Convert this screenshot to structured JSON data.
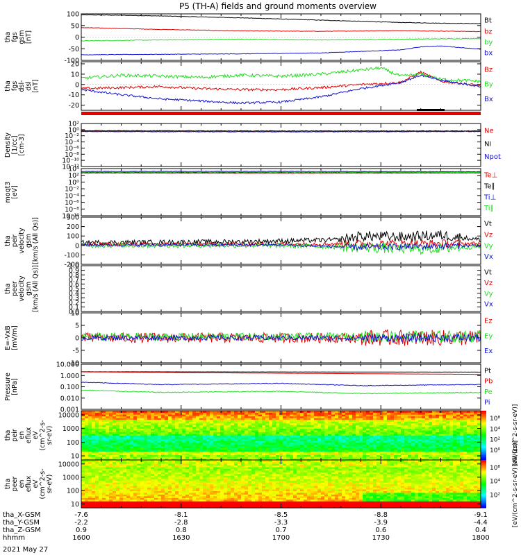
{
  "title": "P5 (TH-A) fields and ground moments overview",
  "colors": {
    "black": "#000000",
    "red": "#e00000",
    "green": "#22dd22",
    "blue": "#1010d0"
  },
  "chart_data": [
    {
      "type": "line",
      "name": "fgs-gsm",
      "ylabel_lines": [
        "tha",
        "fgs",
        "gsm",
        "[nT]"
      ],
      "ylim": [
        -100,
        100
      ],
      "yticks": [
        "-100",
        "-50",
        "0",
        "50",
        "100"
      ],
      "series": [
        {
          "name": "Bt",
          "color": "black",
          "x": [
            0,
            0.1,
            0.2,
            0.3,
            0.4,
            0.5,
            0.6,
            0.7,
            0.8,
            0.9,
            1.0
          ],
          "values": [
            96,
            94,
            91,
            87,
            83,
            78,
            73,
            68,
            63,
            60,
            58
          ],
          "noise": 1
        },
        {
          "name": "bz",
          "color": "red",
          "x": [
            0,
            0.2,
            0.4,
            0.6,
            0.8,
            1.0
          ],
          "values": [
            41,
            33,
            27,
            25,
            28,
            24
          ],
          "noise": 1
        },
        {
          "name": "by",
          "color": "green",
          "x": [
            0,
            0.2,
            0.4,
            0.6,
            0.8,
            1.0
          ],
          "values": [
            -16,
            -12,
            -9,
            -12,
            -9,
            -6
          ],
          "noise": 1.5
        },
        {
          "name": "bx",
          "color": "blue",
          "x": [
            0,
            0.2,
            0.4,
            0.6,
            0.8,
            0.85,
            0.9,
            1.0
          ],
          "values": [
            -76,
            -74,
            -72,
            -68,
            -55,
            -42,
            -38,
            -52
          ],
          "noise": 1
        }
      ]
    },
    {
      "type": "line",
      "name": "fgs-dsl",
      "ylabel_lines": [
        "tha",
        "fgs",
        "dsl-",
        "dsl",
        "[nT]"
      ],
      "ylim": [
        -25,
        22
      ],
      "yticks": [
        "-20",
        "-10",
        "0",
        "10",
        "20"
      ],
      "series": [
        {
          "name": "Bz",
          "color": "red",
          "x": [
            0,
            0.1,
            0.2,
            0.3,
            0.4,
            0.5,
            0.6,
            0.7,
            0.8,
            0.85,
            0.9,
            1.0
          ],
          "values": [
            -4,
            -3,
            -2,
            -4,
            -5,
            -5,
            -3,
            0,
            2,
            12,
            3,
            -1
          ],
          "noise": 1.2
        },
        {
          "name": "By",
          "color": "green",
          "x": [
            0,
            0.1,
            0.2,
            0.3,
            0.4,
            0.5,
            0.6,
            0.7,
            0.75,
            0.8,
            0.85,
            0.9,
            1.0
          ],
          "values": [
            6,
            9,
            8,
            7,
            9,
            8,
            10,
            14,
            16,
            8,
            10,
            5,
            3
          ],
          "noise": 1.5
        },
        {
          "name": "Bx",
          "color": "blue",
          "x": [
            0,
            0.1,
            0.2,
            0.3,
            0.4,
            0.5,
            0.6,
            0.7,
            0.8,
            0.85,
            0.9,
            1.0
          ],
          "values": [
            -5,
            -10,
            -14,
            -16,
            -18,
            -17,
            -12,
            -4,
            2,
            9,
            4,
            -2
          ],
          "noise": 1
        }
      ]
    },
    {
      "type": "line",
      "name": "density",
      "ylabel_lines": [
        "Density",
        "[1/cc]",
        "[cm-3]"
      ],
      "log": true,
      "ylim": [
        -12,
        3
      ],
      "yticks": [
        "10²",
        "10⁰",
        "10⁻²",
        "10⁻⁴",
        "10⁻⁶",
        "10⁻⁸",
        "10⁻¹⁰",
        "10⁻¹²"
      ],
      "series": [
        {
          "name": "Ne",
          "color": "red",
          "x": [
            0,
            0.5,
            1.0
          ],
          "values": [
            0.3,
            0.2,
            0.3
          ],
          "noise": 0.15
        },
        {
          "name": "Ni",
          "color": "black",
          "x": [
            0,
            0.5,
            1.0
          ],
          "values": [
            0.5,
            0.4,
            0.4
          ],
          "noise": 0.1
        },
        {
          "name": "Npot",
          "color": "blue",
          "x": [
            0,
            0.5,
            1.0
          ],
          "values": [
            0.2,
            0.1,
            0.2
          ],
          "noise": 0.1
        }
      ]
    },
    {
      "type": "line",
      "name": "moqt3",
      "ylabel_lines": [
        "moqt3",
        "[eV]"
      ],
      "log": true,
      "ylim": [
        -10,
        5
      ],
      "yticks": [
        "10⁴",
        "10²",
        "10⁰",
        "10⁻²",
        "10⁻⁴",
        "10⁻⁶",
        "10⁻⁸",
        "10⁻¹⁰"
      ],
      "series": [
        {
          "name": "Te⊥",
          "color": "red",
          "x": [
            0,
            0.5,
            1.0
          ],
          "values": [
            3.6,
            3.5,
            3.6
          ],
          "noise": 0.08
        },
        {
          "name": "Te∥",
          "color": "black",
          "x": [
            0,
            0.5,
            1.0
          ],
          "values": [
            3.8,
            3.8,
            3.8
          ],
          "noise": 0.08
        },
        {
          "name": "Ti⊥",
          "color": "blue",
          "x": [
            0,
            0.5,
            1.0
          ],
          "values": [
            4.1,
            4.1,
            4.0
          ],
          "noise": 0.06
        },
        {
          "name": "Ti∥",
          "color": "green",
          "x": [
            0,
            0.5,
            1.0
          ],
          "values": [
            3.9,
            3.9,
            3.8
          ],
          "noise": 0.06
        }
      ]
    },
    {
      "type": "line",
      "name": "peir-velocity",
      "ylabel_lines": [
        "tha",
        "peir",
        "velocity",
        "gsm",
        "[km/s (All Qs)]"
      ],
      "ylim": [
        -200,
        300
      ],
      "yticks": [
        "-200",
        "-100",
        "0",
        "100",
        "200",
        "300"
      ],
      "series": [
        {
          "name": "Vt",
          "color": "black",
          "x": [
            0,
            0.4,
            0.65,
            0.7,
            0.8,
            0.9,
            1.0
          ],
          "values": [
            30,
            40,
            60,
            100,
            90,
            110,
            60
          ],
          "noise": 25
        },
        {
          "name": "Vz",
          "color": "red",
          "x": [
            0,
            0.5,
            1.0
          ],
          "values": [
            10,
            15,
            20
          ],
          "noise": 20
        },
        {
          "name": "Vy",
          "color": "green",
          "x": [
            0,
            0.5,
            0.7,
            0.85,
            1.0
          ],
          "values": [
            0,
            0,
            -20,
            -40,
            -10
          ],
          "noise": 25
        },
        {
          "name": "Vx",
          "color": "blue",
          "x": [
            0,
            0.5,
            0.7,
            1.0
          ],
          "values": [
            5,
            5,
            -20,
            0
          ],
          "noise": 15
        }
      ]
    },
    {
      "type": "line",
      "name": "peer-velocity",
      "ylabel_lines": [
        "tha",
        "peer",
        "velocity",
        "gsm",
        "[km/s (All Qs)]"
      ],
      "ylim": [
        0,
        1
      ],
      "yticks": [
        "0.0",
        "0.1",
        "0.2",
        "0.3",
        "0.4",
        "0.5",
        "0.6",
        "0.7",
        "0.8",
        "0.9",
        "1.0"
      ],
      "series": [
        {
          "name": "Vt",
          "color": "black",
          "x": [],
          "values": []
        },
        {
          "name": "Vz",
          "color": "red",
          "x": [],
          "values": []
        },
        {
          "name": "Vy",
          "color": "green",
          "x": [],
          "values": []
        },
        {
          "name": "Vx",
          "color": "blue",
          "x": [],
          "values": []
        }
      ]
    },
    {
      "type": "line",
      "name": "efield",
      "ylabel_lines": [
        "E=-VxB",
        "[mV/m]"
      ],
      "ylim": [
        -10,
        10
      ],
      "yticks": [
        "-10",
        "-5",
        "0",
        "5",
        "10"
      ],
      "series": [
        {
          "name": "Ez",
          "color": "red",
          "x": [
            0,
            0.5,
            1.0
          ],
          "values": [
            0,
            0,
            0
          ],
          "noise": 2
        },
        {
          "name": "Ey",
          "color": "green",
          "x": [
            0,
            0.5,
            1.0
          ],
          "values": [
            0.5,
            0.5,
            0.5
          ],
          "noise": 1.5
        },
        {
          "name": "Ex",
          "color": "blue",
          "x": [
            0,
            0.5,
            1.0
          ],
          "values": [
            0,
            0,
            0
          ],
          "noise": 1
        }
      ]
    },
    {
      "type": "line",
      "name": "pressure",
      "ylabel_lines": [
        "Pressure",
        "[nPa]"
      ],
      "log": true,
      "ylim": [
        -3,
        1
      ],
      "yticks": [
        "10.000",
        "1.000",
        "0.100",
        "0.010",
        "0.001"
      ],
      "series": [
        {
          "name": "Pt",
          "color": "black",
          "x": [
            0,
            1.0
          ],
          "values": [
            0.33,
            0.3
          ],
          "noise": 0.005
        },
        {
          "name": "Pb",
          "color": "red",
          "x": [
            0,
            0.5,
            1.0
          ],
          "values": [
            0.32,
            0.2,
            0.1
          ],
          "noise": 0.005
        },
        {
          "name": "Pe",
          "color": "green",
          "x": [
            0,
            0.2,
            0.5,
            0.7,
            1.0
          ],
          "values": [
            -1.3,
            -1.5,
            -1.4,
            -1.6,
            -1.5
          ],
          "noise": 0.04
        },
        {
          "name": "Pi",
          "color": "blue",
          "x": [
            0,
            0.2,
            0.5,
            0.7,
            1.0
          ],
          "values": [
            -0.6,
            -0.8,
            -0.7,
            -0.9,
            -0.8
          ],
          "noise": 0.03
        }
      ]
    },
    {
      "type": "heatmap",
      "name": "peir-en-eflux",
      "ylabel_lines": [
        "tha",
        "peir",
        "en",
        "eflux",
        "eV",
        "(cm^2-s-",
        "sr-eV)"
      ],
      "log": true,
      "ylim": [
        0.7,
        4.3
      ],
      "yticks": [
        "10000",
        "1000",
        "100",
        "10"
      ],
      "cbar_label": "[eV/(cm^2-s-sr-eV)]",
      "cbar_ticks": [
        "10⁸",
        "10⁴",
        "10²",
        "10⁰"
      ]
    },
    {
      "type": "heatmap",
      "name": "peer-en-eflux",
      "ylabel_lines": [
        "tha",
        "peer",
        "en",
        "eflux",
        "eV",
        "(cm^2-s-",
        "sr-eV)"
      ],
      "log": true,
      "ylim": [
        0.7,
        4.3
      ],
      "yticks": [
        "10000",
        "1000",
        "100",
        "10"
      ],
      "cbar_label": "[eV/(cm^2-s-sr-eV) (All Qs)]",
      "cbar_ticks": [
        "10⁸",
        "10⁴",
        "10²"
      ]
    }
  ],
  "x_axis": {
    "rows": [
      {
        "label": "tha_X-GSM",
        "values": [
          "-7.6",
          "-8.1",
          "-8.5",
          "-8.8",
          "-9.1"
        ]
      },
      {
        "label": "tha_Y-GSM",
        "values": [
          "-2.2",
          "-2.8",
          "-3.3",
          "-3.9",
          "-4.4"
        ]
      },
      {
        "label": "tha_Z-GSM",
        "values": [
          "0.9",
          "0.8",
          "0.7",
          "0.6",
          "0.4"
        ]
      },
      {
        "label": "hhmm",
        "values": [
          "1600",
          "1630",
          "1700",
          "1730",
          "1800"
        ]
      }
    ],
    "date": "2021 May 27"
  }
}
